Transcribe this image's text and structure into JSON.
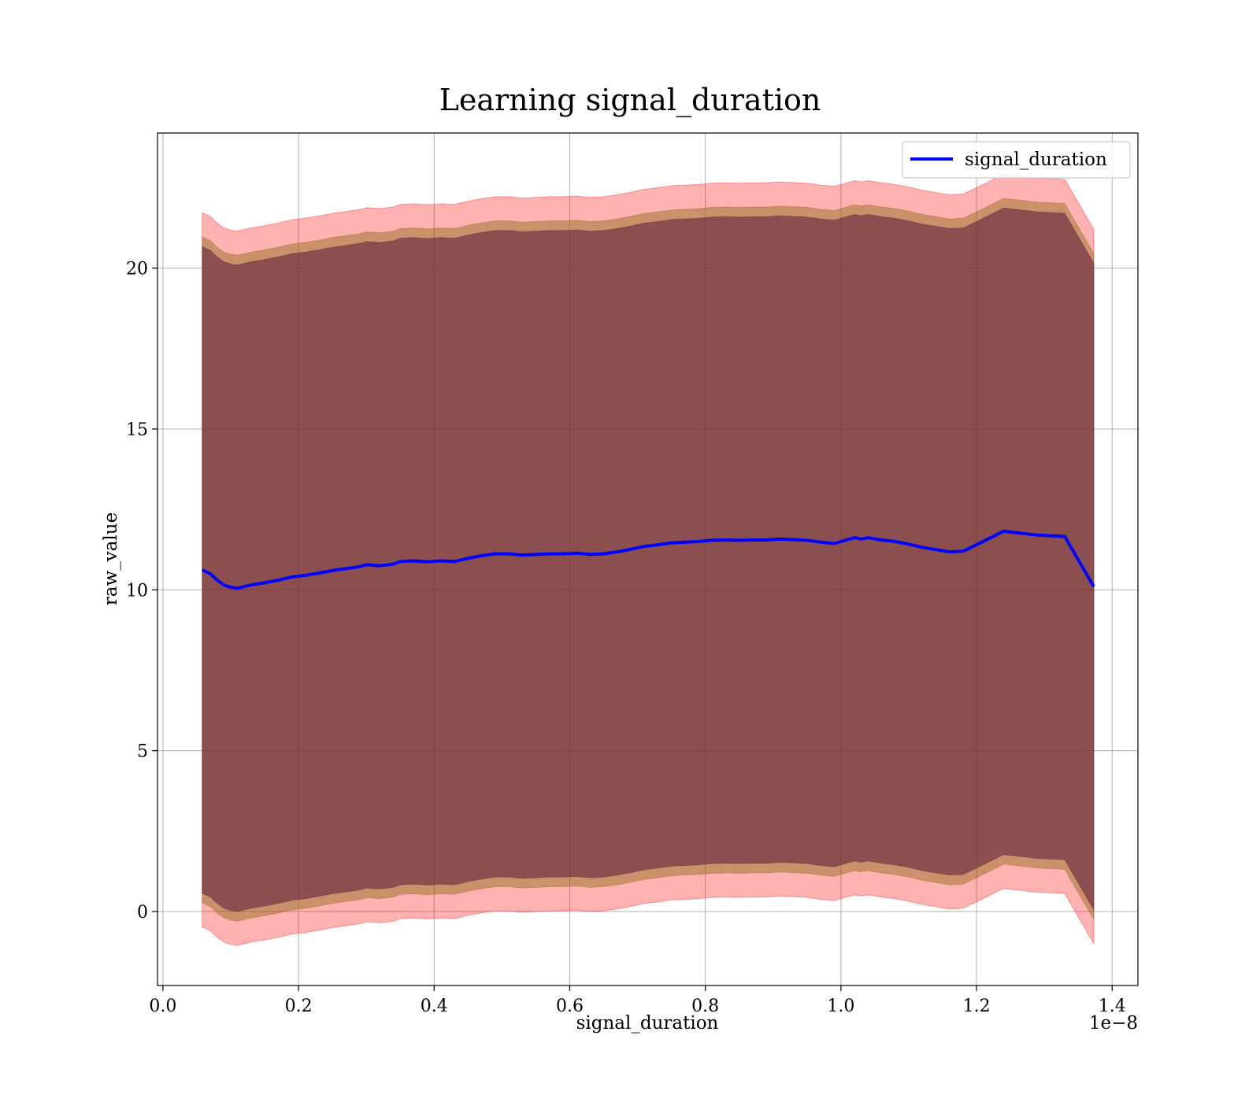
{
  "chart_data": {
    "type": "line",
    "title": "Learning signal_duration",
    "xlabel": "signal_duration",
    "ylabel": "raw_value",
    "x_offset_text": "1e−8",
    "xlim": [
      -0.008,
      1.438
    ],
    "ylim": [
      -2.3,
      24.2
    ],
    "x_ticks": [
      0.0,
      0.2,
      0.4,
      0.6,
      0.8,
      1.0,
      1.2,
      1.4
    ],
    "x_tick_labels": [
      "0.0",
      "0.2",
      "0.4",
      "0.6",
      "0.8",
      "1.0",
      "1.2",
      "1.4"
    ],
    "y_ticks": [
      0,
      5,
      10,
      15,
      20
    ],
    "y_tick_labels": [
      "0",
      "5",
      "10",
      "15",
      "20"
    ],
    "grid": true,
    "legend_position": "top-right",
    "colors": {
      "line": "#0000ff",
      "band_outer": "#ff0000",
      "band_mid": "#8b6914",
      "band_inner": "#5a1a3a"
    },
    "x": [
      0.058,
      0.07,
      0.08,
      0.09,
      0.1,
      0.11,
      0.12,
      0.13,
      0.15,
      0.17,
      0.19,
      0.21,
      0.23,
      0.25,
      0.27,
      0.29,
      0.3,
      0.32,
      0.34,
      0.35,
      0.37,
      0.39,
      0.41,
      0.43,
      0.45,
      0.47,
      0.49,
      0.51,
      0.53,
      0.55,
      0.57,
      0.59,
      0.61,
      0.63,
      0.65,
      0.67,
      0.69,
      0.71,
      0.73,
      0.75,
      0.77,
      0.79,
      0.81,
      0.83,
      0.85,
      0.87,
      0.89,
      0.91,
      0.93,
      0.95,
      0.97,
      0.99,
      1.0,
      1.02,
      1.03,
      1.04,
      1.06,
      1.08,
      1.1,
      1.12,
      1.14,
      1.16,
      1.18,
      1.2,
      1.24,
      1.29,
      1.33,
      1.373
    ],
    "series": [
      {
        "name": "signal_duration",
        "values": [
          10.62,
          10.5,
          10.3,
          10.15,
          10.08,
          10.05,
          10.1,
          10.15,
          10.22,
          10.3,
          10.4,
          10.45,
          10.52,
          10.6,
          10.66,
          10.72,
          10.78,
          10.75,
          10.8,
          10.88,
          10.9,
          10.87,
          10.9,
          10.88,
          10.98,
          11.06,
          11.12,
          11.12,
          11.08,
          11.1,
          11.12,
          11.12,
          11.14,
          11.1,
          11.12,
          11.18,
          11.26,
          11.35,
          11.4,
          11.46,
          11.48,
          11.5,
          11.54,
          11.55,
          11.54,
          11.55,
          11.55,
          11.58,
          11.56,
          11.54,
          11.48,
          11.44,
          11.5,
          11.62,
          11.58,
          11.62,
          11.55,
          11.5,
          11.42,
          11.32,
          11.25,
          11.18,
          11.2,
          11.4,
          11.82,
          11.7,
          11.66,
          10.1
        ]
      }
    ],
    "bands": [
      {
        "offset": 11.1
      },
      {
        "offset": 10.35
      },
      {
        "offset": 10.05
      }
    ]
  },
  "legend": {
    "label": "signal_duration"
  }
}
